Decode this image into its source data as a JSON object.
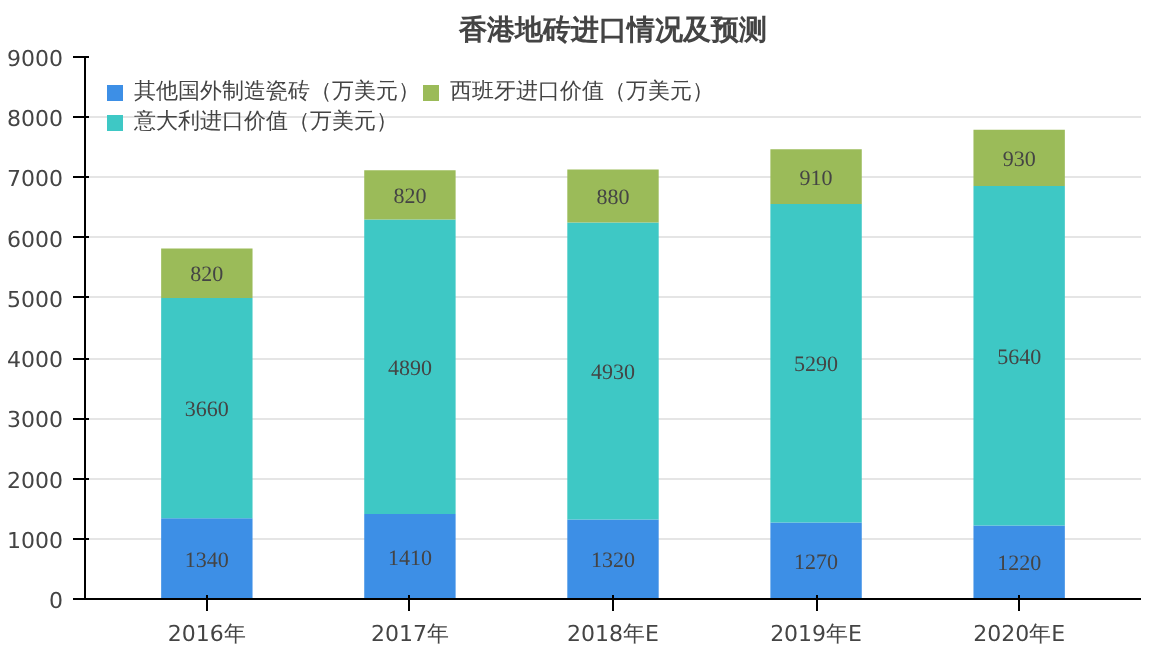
{
  "chart_data": {
    "type": "bar",
    "title": "香港地砖进口情况及预测",
    "categories": [
      "2016年",
      "2017年",
      "2018年E",
      "2019年E",
      "2020年E"
    ],
    "stacked": true,
    "data_labels": true,
    "ylim": [
      0,
      9000
    ],
    "yticks": [
      0,
      1000,
      2000,
      3000,
      4000,
      5000,
      6000,
      7000,
      8000,
      9000
    ],
    "grid": "y",
    "legend": "top left",
    "series": [
      {
        "name": "其他国外制造瓷砖（万美元）",
        "color": "#3d8fe6",
        "values": [
          1340,
          1410,
          1320,
          1270,
          1220
        ]
      },
      {
        "name": "意大利进口价值（万美元）",
        "color": "#3ec8c5",
        "values": [
          3660,
          4890,
          4930,
          5290,
          5640
        ]
      },
      {
        "name": "西班牙进口价值（万美元）",
        "color": "#9bbb59",
        "values": [
          820,
          820,
          880,
          910,
          930
        ]
      }
    ]
  }
}
